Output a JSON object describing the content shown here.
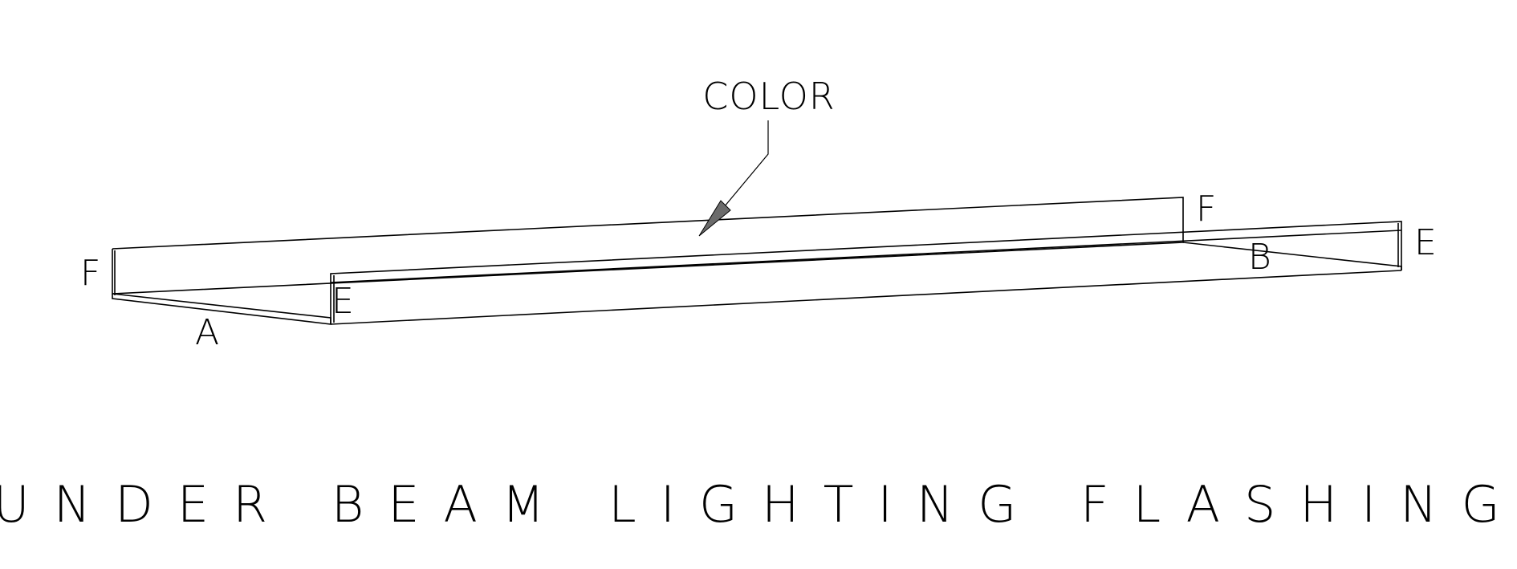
{
  "callout": {
    "label": "COLOR"
  },
  "dimensions": {
    "a": "A",
    "b": "B",
    "e_left": "E",
    "e_right": "E",
    "f_left": "F",
    "f_right": "F"
  },
  "title": "UNDER BEAM LIGHTING FLASHING",
  "colors": {
    "line": "#000000",
    "arrow_fill": "#6b6b6b",
    "background": "#ffffff"
  }
}
